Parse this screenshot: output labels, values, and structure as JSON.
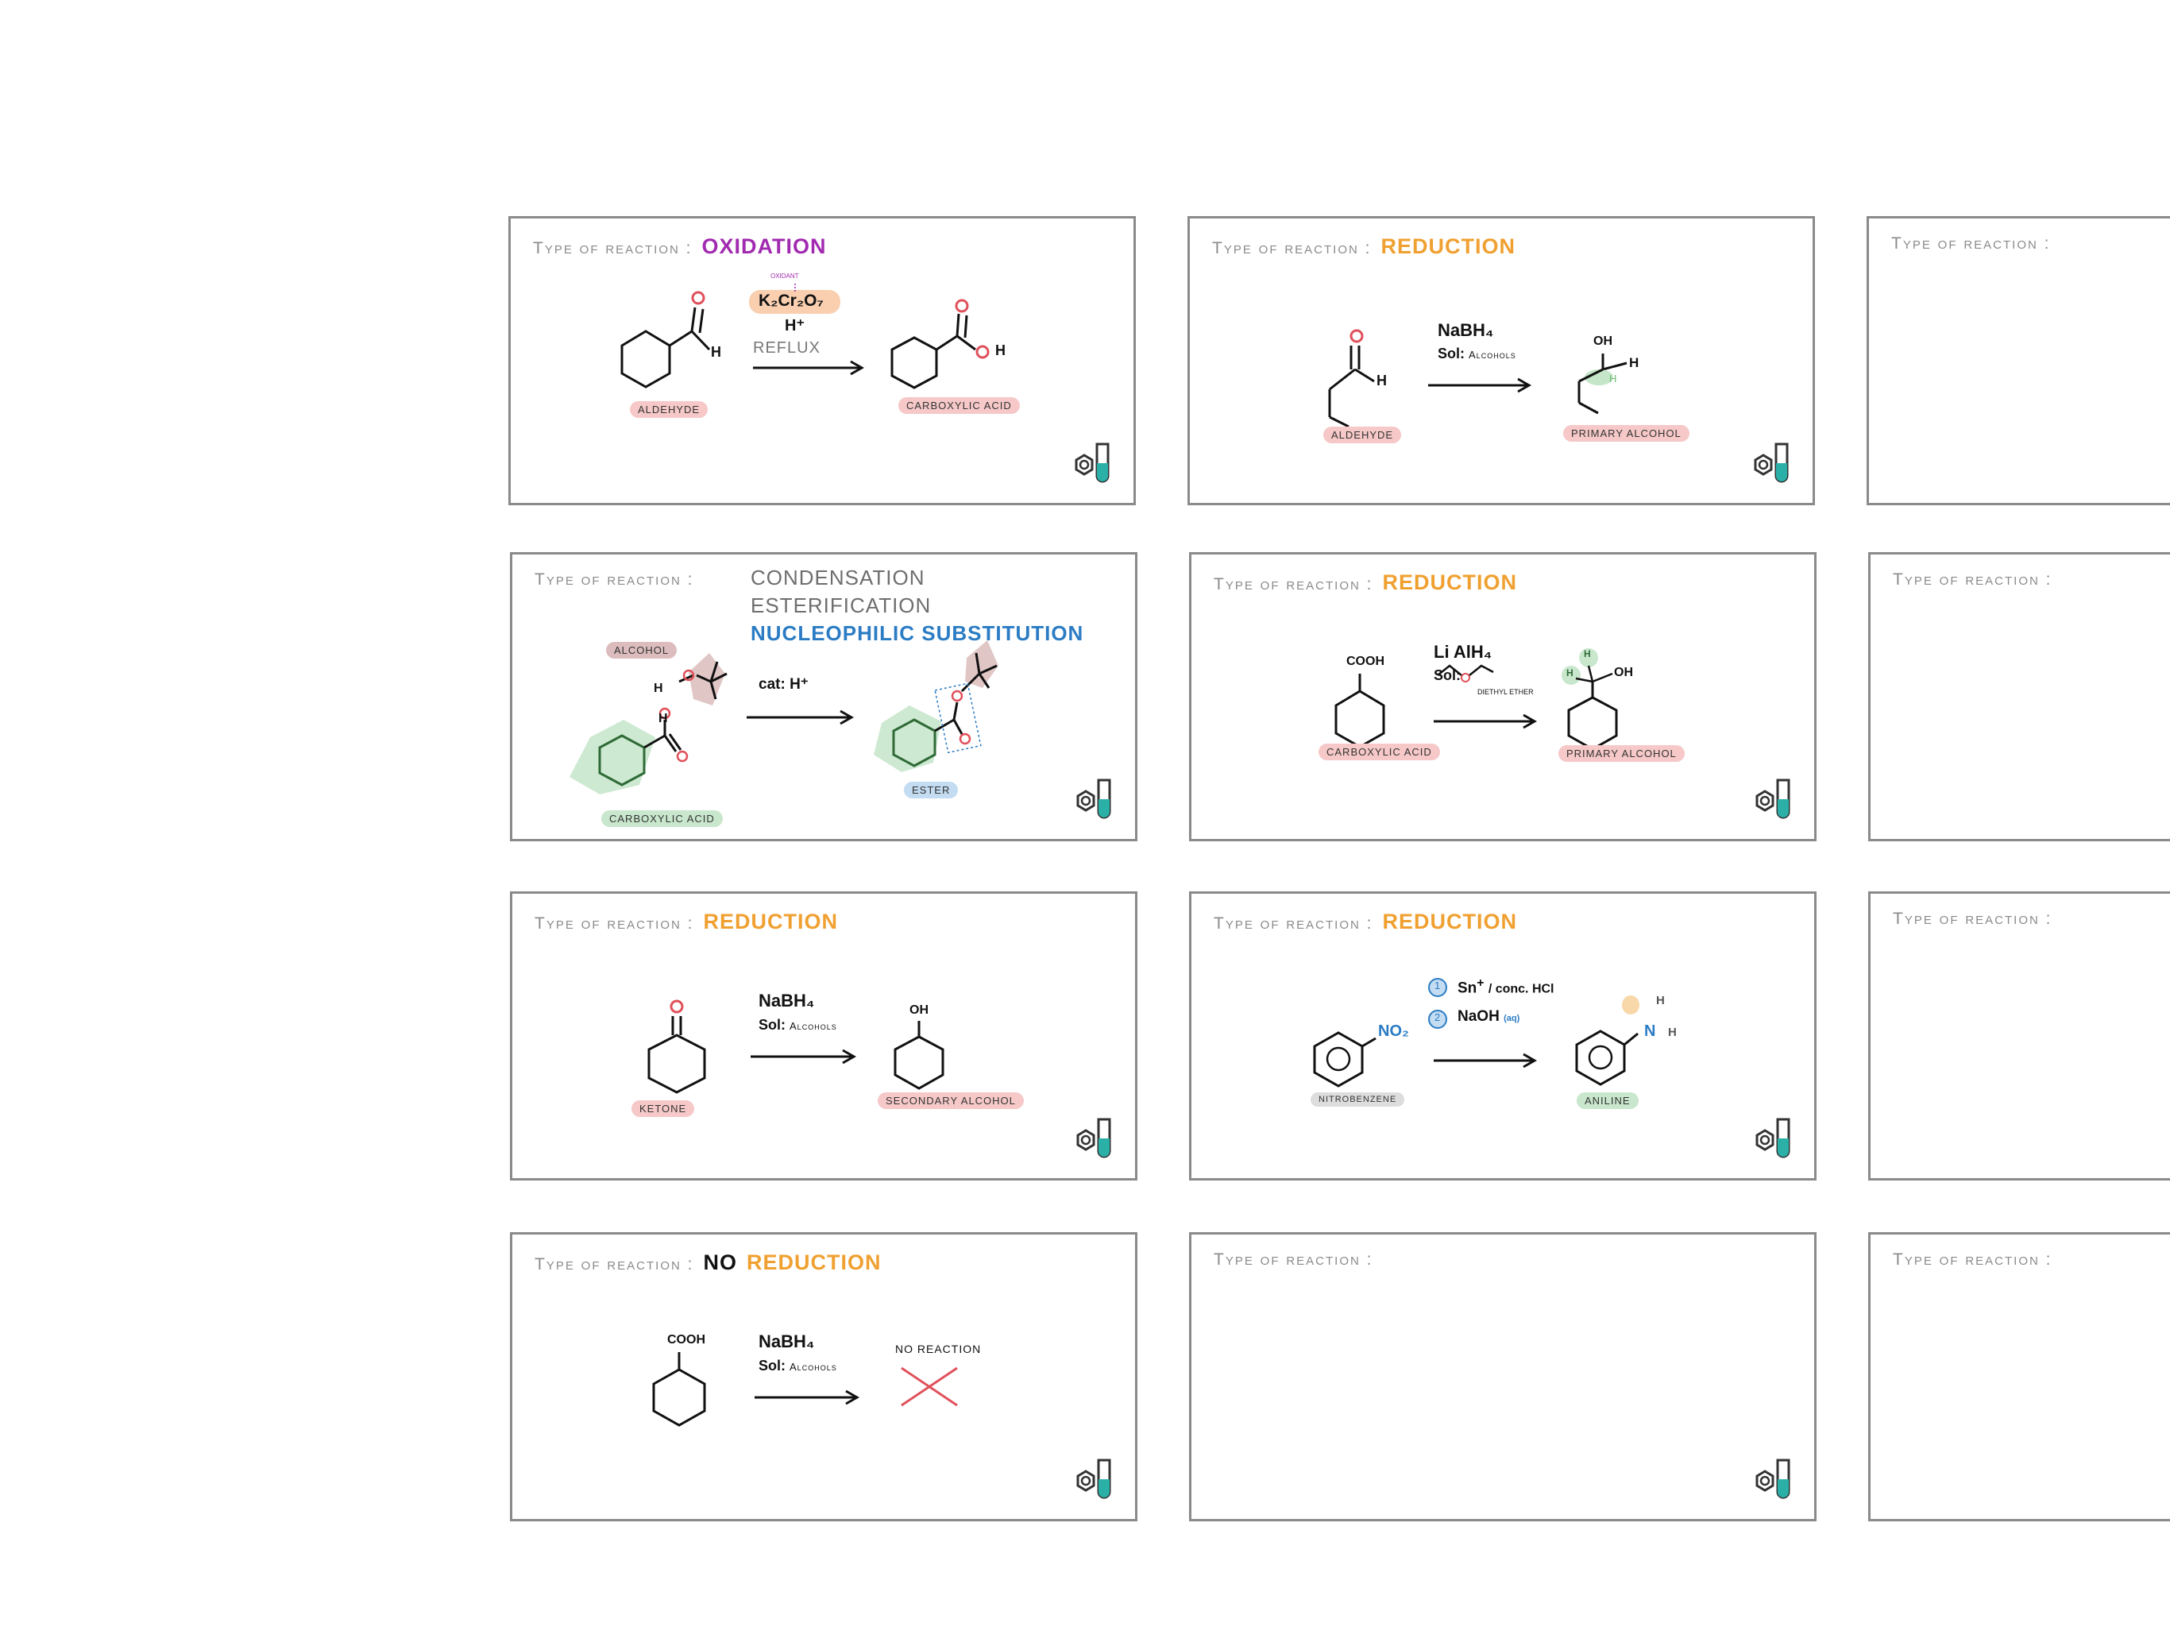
{
  "header_label": "Type of reaction :",
  "cards": [
    {
      "type": "OXIDATION",
      "reagent_note": "oxidant",
      "reagent": "K₂Cr₂O₇",
      "reagent2": "H⁺",
      "condition": "REFLUX",
      "reactant_label": "ALDEHYDE",
      "product_label": "CARBOXYLIC ACID"
    },
    {
      "type": "REDUCTION",
      "reagent": "NaBH₄",
      "sol_label": "Sol:",
      "sol_value": "Alcohols",
      "reactant_label": "ALDEHYDE",
      "product_label": "PRIMARY ALCOHOL"
    },
    {
      "type_lines": [
        "CONDENSATION",
        "ESTERIFICATION",
        "NUCLEOPHILIC SUBSTITUTION"
      ],
      "catalyst": "cat: H⁺",
      "alcohol_label": "ALCOHOL",
      "reactant_label": "CARBOXYLIC ACID",
      "product_label": "ESTER"
    },
    {
      "type": "REDUCTION",
      "reagent": "Li AlH₄",
      "sol_label": "Sol:",
      "sol_value": "DIETHYL ETHER",
      "reactant_group": "COOH",
      "reactant_label": "CARBOXYLIC ACID",
      "product_label": "PRIMARY ALCOHOL"
    },
    {
      "type": "REDUCTION",
      "reagent": "NaBH₄",
      "sol_label": "Sol:",
      "sol_value": "Alcohols",
      "reactant_label": "KETONE",
      "product_label": "SECONDARY ALCOHOL"
    },
    {
      "type": "REDUCTION",
      "step1_num": "1",
      "step1": "Sn",
      "step1_tail": "/ conc. HCl",
      "step2_num": "2",
      "step2": "NaOH",
      "step2_tail": "(aq)",
      "reactant_group": "NO₂",
      "reactant_label": "NITROBENZENE",
      "product_label": "ANILINE"
    },
    {
      "type_prefix": "NO",
      "type": "REDUCTION",
      "reagent": "NaBH₄",
      "sol_label": "Sol:",
      "sol_value": "Alcohols",
      "reactant_group": "COOH",
      "result": "NO REACTION"
    }
  ],
  "colors": {
    "oxidation": "#a12ab0",
    "reduction": "#f0a030",
    "blue": "#2b7cc4",
    "oxygen_red": "#e0505a",
    "logo_teal": "#2bb0a8"
  },
  "icons": [
    "chemistry-logo-icon",
    "reaction-arrow-icon",
    "no-reaction-cross-icon"
  ]
}
